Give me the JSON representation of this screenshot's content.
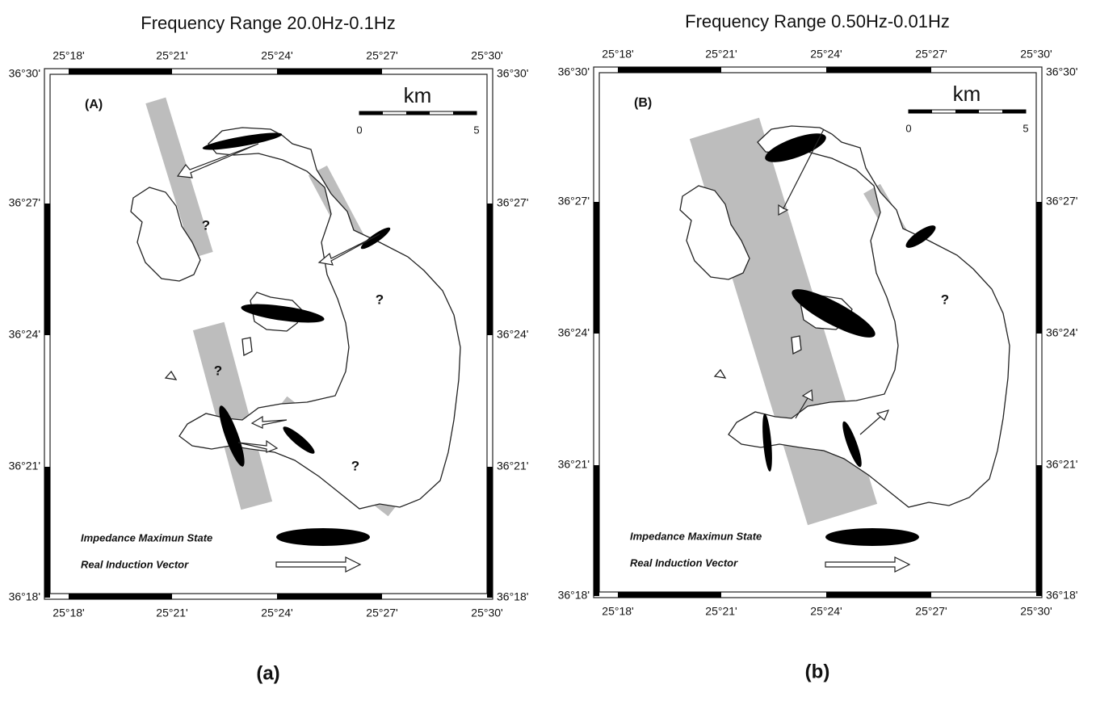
{
  "axes": {
    "longitudes": [
      "25°18'",
      "25°21'",
      "25°24'",
      "25°27'",
      "25°30'"
    ],
    "latitudes": [
      "36°30'",
      "36°27'",
      "36°24'",
      "36°21'",
      "36°18'"
    ]
  },
  "scale": {
    "unit": "km",
    "ticks": [
      "0",
      "5"
    ]
  },
  "legend": [
    "Impedance Maximun State",
    "Real Induction Vector"
  ],
  "panels": [
    {
      "title": "Frequency Range 20.0Hz-0.1Hz",
      "label": "(A)",
      "caption": "(a)",
      "question_marks": [
        "?",
        "?",
        "?",
        "?"
      ]
    },
    {
      "title": "Frequency Range 0.50Hz-0.01Hz",
      "label": "(B)",
      "caption": "(b)",
      "question_marks": [
        "?"
      ]
    }
  ]
}
